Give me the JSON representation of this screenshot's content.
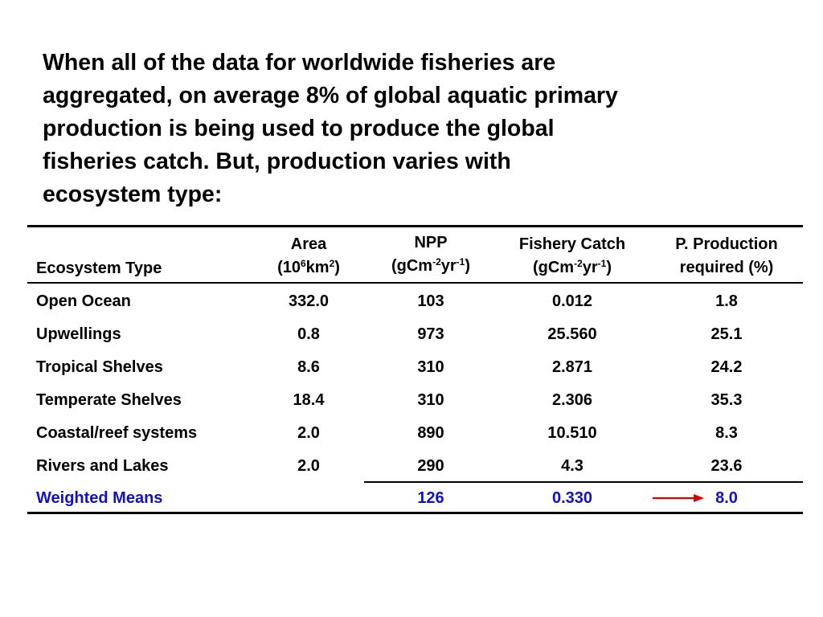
{
  "intro_text": "When all of the data for worldwide fisheries are\naggregated, on average 8% of global aquatic primary\nproduction is being used to produce the global\nfisheries catch.  But, production varies with\necosystem type:",
  "table": {
    "headers": {
      "ecosystem": "Ecosystem Type",
      "area": {
        "line1": "Area",
        "pre": "(10",
        "sup1": "6",
        "mid": "km",
        "sup2": "2",
        "post": ")"
      },
      "npp": {
        "line1": "NPP",
        "pre": "(gCm",
        "sup1": "-2",
        "mid": "yr",
        "sup2": "-1",
        "post": ")"
      },
      "catch": {
        "line1": "Fishery Catch",
        "pre": "(gCm",
        "sup1": "-2",
        "mid": "yr",
        "sup2": "-1",
        "post": ")"
      },
      "production": {
        "line1": "P. Production",
        "line2": "required (%)"
      }
    },
    "rows": [
      [
        "Open Ocean",
        "332.0",
        "103",
        "0.012",
        "1.8"
      ],
      [
        "Upwellings",
        "0.8",
        "973",
        "25.560",
        "25.1"
      ],
      [
        "Tropical Shelves",
        "8.6",
        "310",
        "2.871",
        "24.2"
      ],
      [
        "Temperate Shelves",
        "18.4",
        "310",
        "2.306",
        "35.3"
      ],
      [
        "Coastal/reef systems",
        "2.0",
        "890",
        "10.510",
        "8.3"
      ],
      [
        "Rivers and Lakes",
        "2.0",
        "290",
        "4.3",
        "23.6"
      ]
    ],
    "weighted": {
      "label": "Weighted Means",
      "npp": "126",
      "catch": "0.330",
      "production": "8.0"
    }
  },
  "colors": {
    "highlight": "#1010cc",
    "arrow": "#e00000"
  },
  "icons": {
    "arrow": "right-arrow-icon"
  }
}
